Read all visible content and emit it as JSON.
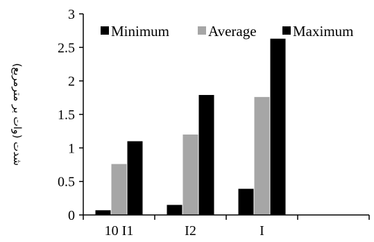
{
  "chart_data": {
    "type": "bar",
    "categories": [
      "10 I1",
      "I2",
      "I",
      ""
    ],
    "series": [
      {
        "name": "Minimum",
        "values": [
          0.07,
          0.15,
          0.39,
          null
        ],
        "color": "#000000"
      },
      {
        "name": "Average",
        "values": [
          0.76,
          1.2,
          1.76,
          null
        ],
        "color": "#a6a6a6"
      },
      {
        "name": "Maximum",
        "values": [
          1.1,
          1.79,
          2.63,
          null
        ],
        "color": "#000000"
      }
    ],
    "title": "",
    "xlabel": "",
    "ylabel": "شدت (وات بر مترمربع)",
    "ylim": [
      0,
      3
    ],
    "yticks": [
      "0",
      "0.5",
      "1",
      "1.5",
      "2",
      "2.5",
      "3"
    ],
    "grid": false,
    "legend": "top"
  }
}
